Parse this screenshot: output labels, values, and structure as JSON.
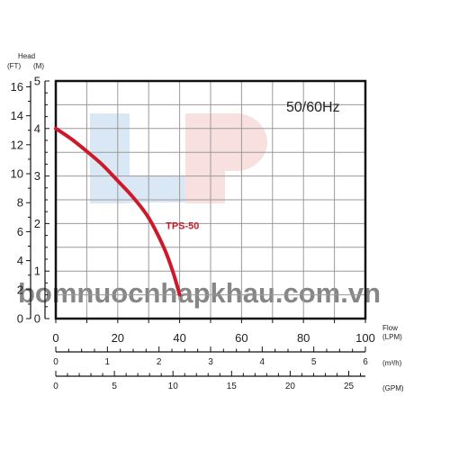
{
  "chart_data": {
    "type": "line",
    "annotation": "50/60Hz",
    "watermark": "bomnuocnhapkhau.com.vn",
    "watermark_logo": "LP",
    "y_title": "Head",
    "y_ft_unit": "(FT)",
    "y_m_unit": "(M)",
    "y_m_ticks": [
      0,
      1,
      2,
      3,
      4,
      5
    ],
    "y_ft_ticks": [
      0,
      2,
      4,
      6,
      8,
      10,
      12,
      14,
      16
    ],
    "ylim_m": [
      0,
      5
    ],
    "ylim_ft": [
      0,
      16.4
    ],
    "x_title": "Flow",
    "x_lpm_unit": "(LPM)",
    "x_lpm_ticks": [
      0,
      20,
      40,
      60,
      80,
      100
    ],
    "xlim_lpm": [
      0,
      100
    ],
    "x_m3h_unit": "(m³/h)",
    "x_m3h_ticks": [
      0,
      1,
      2,
      3,
      4,
      5,
      6
    ],
    "xlim_m3h": [
      0,
      6
    ],
    "x_gpm_unit": "(GPM)",
    "x_gpm_ticks": [
      0,
      5,
      10,
      15,
      20,
      25
    ],
    "xlim_gpm": [
      0,
      26.42
    ],
    "grid": true,
    "series": [
      {
        "name": "TPS-50",
        "color": "#cc1a2b",
        "x": [
          0,
          5,
          10,
          15,
          20,
          25,
          30,
          35,
          38,
          40
        ],
        "y": [
          4.0,
          3.78,
          3.52,
          3.24,
          2.9,
          2.55,
          2.12,
          1.48,
          0.95,
          0.5
        ]
      }
    ]
  }
}
